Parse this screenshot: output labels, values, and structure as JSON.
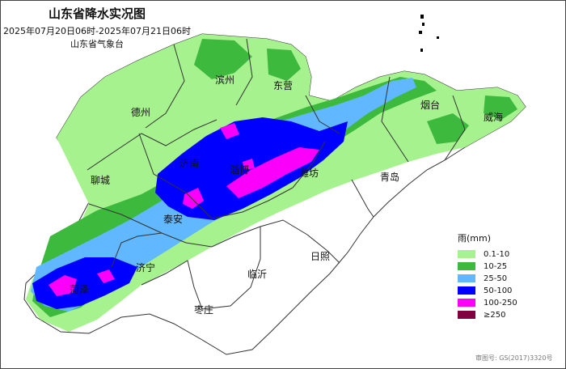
{
  "header": {
    "title": "山东省降水实况图",
    "period": "2025年07月20日06时-2025年07月21日06时",
    "issuer": "山东省气象台"
  },
  "cities": [
    "滨州",
    "东营",
    "德州",
    "烟台",
    "威海",
    "济南",
    "淄博",
    "潍坊",
    "聊城",
    "青岛",
    "泰安",
    "济宁",
    "日照",
    "临沂",
    "菏泽",
    "枣庄"
  ],
  "legend": {
    "title": "雨(mm)",
    "items": [
      {
        "label": "0.1-10",
        "color": "#a6f28f"
      },
      {
        "label": "10-25",
        "color": "#3dba3d"
      },
      {
        "label": "25-50",
        "color": "#61b8ff"
      },
      {
        "label": "50-100",
        "color": "#0000fe"
      },
      {
        "label": "100-250",
        "color": "#fa00fa"
      },
      {
        "label": "≥250",
        "color": "#800040"
      }
    ]
  },
  "approval": "审图号: GS(2017)3320号"
}
